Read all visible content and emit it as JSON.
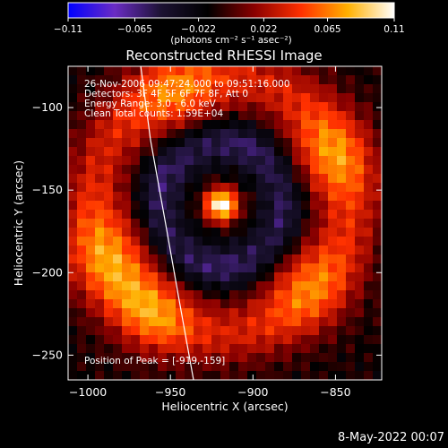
{
  "chart_data": {
    "type": "heatmap",
    "title": "Reconstructed RHESSI Image",
    "xlabel": "Heliocentric X (arcsec)",
    "ylabel": "Heliocentric Y (arcsec)",
    "xlim": [
      -1012,
      -822
    ],
    "ylim": [
      -265,
      -75
    ],
    "x_ticks": [
      -1000,
      -950,
      -900,
      -850
    ],
    "x_tick_labels": [
      "−1000",
      "−950",
      "−900",
      "−850"
    ],
    "y_ticks": [
      -100,
      -150,
      -200,
      -250
    ],
    "y_tick_labels": [
      "−100",
      "−150",
      "−200",
      "−250"
    ],
    "colorbar": {
      "min": -0.11,
      "max": 0.11,
      "ticks": [
        -0.11,
        -0.065,
        -0.022,
        0.022,
        0.065,
        0.11
      ],
      "tick_labels": [
        "−0.11",
        "−0.065",
        "−0.022",
        "0.022",
        "0.065",
        "0.11"
      ],
      "unit_label": "(photons cm⁻² s⁻¹ asec⁻²)",
      "colors": [
        "#0000ff",
        "#6a2cc4",
        "#1c1232",
        "#000000",
        "#8b0000",
        "#ff3000",
        "#ffb000",
        "#ffffff"
      ]
    },
    "peak": {
      "x": -919,
      "y": -159,
      "value": 0.11
    },
    "limb": {
      "description_points": [
        [
          -968,
          -75
        ],
        [
          -962,
          -120
        ],
        [
          -953,
          -170
        ],
        [
          -945,
          -215
        ],
        [
          -936,
          -265
        ]
      ],
      "color": "#ffffff"
    },
    "features": [
      {
        "kind": "gaussian",
        "x": -919,
        "y": -159,
        "sigma": 7,
        "amplitude": 0.13
      },
      {
        "kind": "gaussian",
        "x": -985,
        "y": -190,
        "sigma": 22,
        "amplitude": 0.045
      },
      {
        "kind": "gaussian",
        "x": -960,
        "y": -225,
        "sigma": 18,
        "amplitude": 0.04
      },
      {
        "kind": "gaussian",
        "x": -870,
        "y": -205,
        "sigma": 20,
        "amplitude": 0.04
      },
      {
        "kind": "gaussian",
        "x": -855,
        "y": -130,
        "sigma": 20,
        "amplitude": 0.045
      },
      {
        "kind": "gaussian",
        "x": -945,
        "y": -95,
        "sigma": 20,
        "amplitude": 0.04
      },
      {
        "kind": "ring",
        "x": -919,
        "y": -159,
        "radius": 38,
        "width": 10,
        "amplitude": -0.05
      },
      {
        "kind": "ring",
        "x": -919,
        "y": -159,
        "radius": 78,
        "width": 14,
        "amplitude": 0.045
      }
    ]
  },
  "info_lines": [
    "26-Nov-2006 09:47:24.000 to 09:51:16.000",
    "Detectors: 3F 4F 5F 6F 7F 8F, Att 0",
    "Energy Range: 3.0 - 6.0 keV",
    "Clean     Total counts: 1.59E+04"
  ],
  "peak_label": "Position of Peak = [-919,-159]",
  "timestamp": "8-May-2022 00:07"
}
